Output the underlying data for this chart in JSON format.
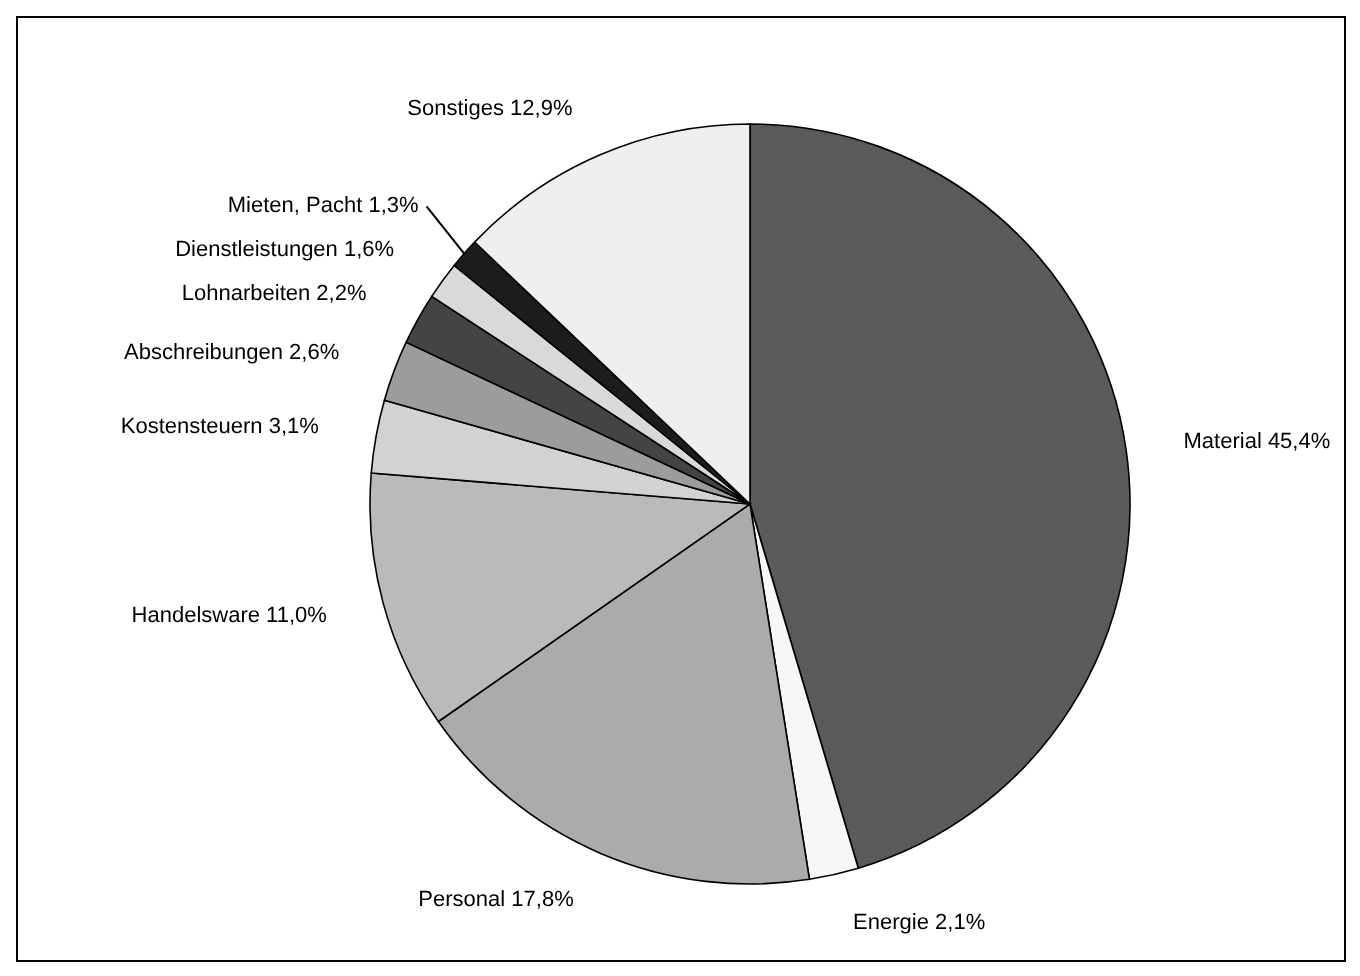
{
  "chart_data": {
    "type": "pie",
    "categories": [
      "Material",
      "Energie",
      "Personal",
      "Handelsware",
      "Kostensteuern",
      "Abschreibungen",
      "Lohnarbeiten",
      "Dienstleistungen",
      "Mieten, Pacht",
      "Sonstiges"
    ],
    "values": [
      45.4,
      2.1,
      17.8,
      11.0,
      3.1,
      2.6,
      2.2,
      1.6,
      1.3,
      12.9
    ],
    "value_labels": [
      "45,4%",
      "2,1%",
      "17,8%",
      "11,0%",
      "3,1%",
      "2,6%",
      "2,2%",
      "1,6%",
      "1,3%",
      "12,9%"
    ],
    "colors": [
      "#5a5a5a",
      "#f7f7f7",
      "#ababab",
      "#bababa",
      "#d2d2d2",
      "#9c9c9c",
      "#444444",
      "#d9d9d9",
      "#1c1c1c",
      "#efefef"
    ]
  }
}
